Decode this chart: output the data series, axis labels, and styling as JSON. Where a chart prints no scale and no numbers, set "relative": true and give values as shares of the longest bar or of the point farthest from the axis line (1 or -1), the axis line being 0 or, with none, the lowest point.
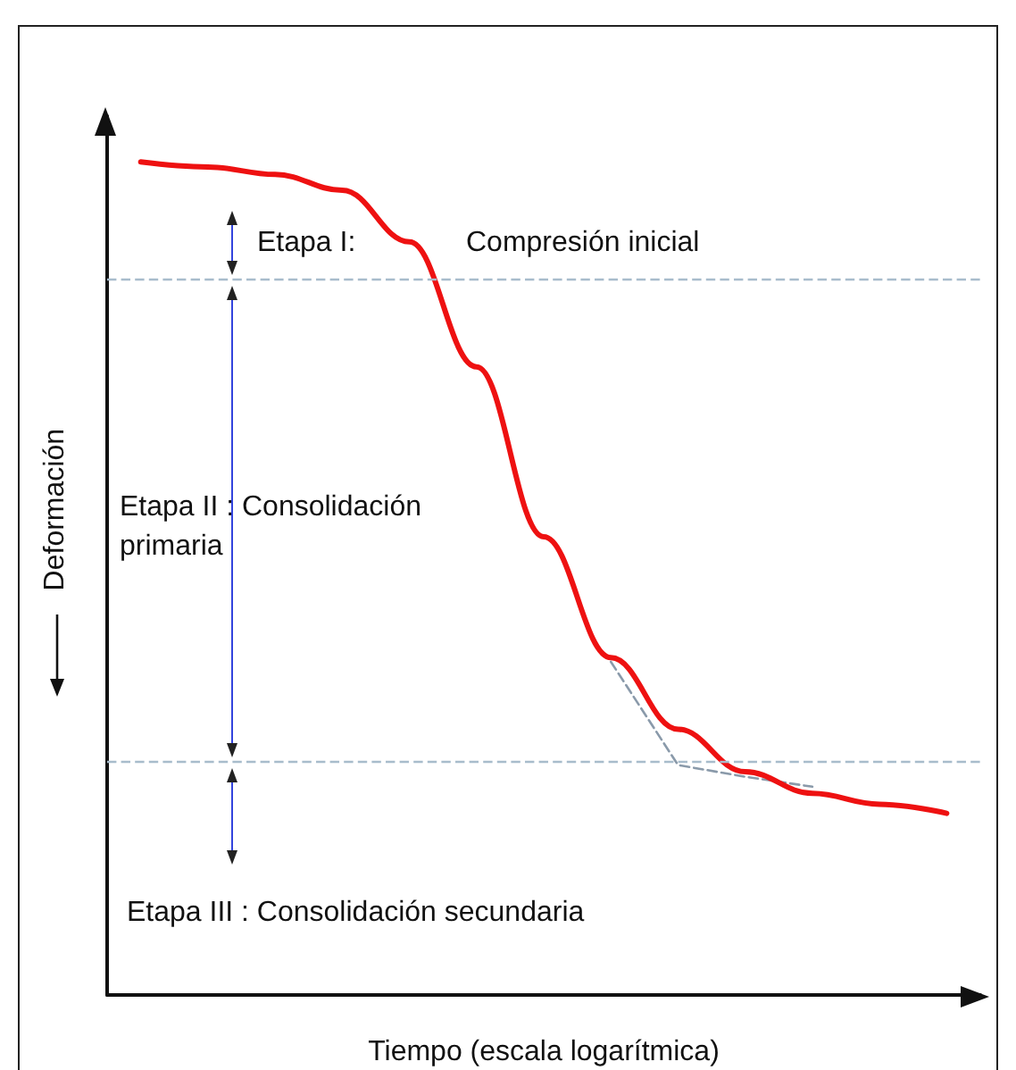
{
  "chart_data": {
    "type": "line",
    "relative": true,
    "xlabel": "Tiempo (escala logarítmica)",
    "ylabel": "Deformación",
    "categories": [
      null,
      null,
      null,
      null,
      null,
      null,
      null,
      null,
      null,
      null,
      null,
      null,
      null
    ],
    "series": [
      {
        "color": "#ee1111",
        "line_style": "solid",
        "values": [
          1,
          0.994,
          0.985,
          0.966,
          0.904,
          0.754,
          0.55,
          0.405,
          0.319,
          0.268,
          0.242,
          0.229,
          0.218
        ]
      },
      {
        "color": "#8a9aaa",
        "line_style": "dashed",
        "values": [
          null,
          null,
          null,
          null,
          null,
          null,
          null,
          0.4,
          0.276,
          0.262,
          0.25,
          null,
          null
        ]
      }
    ],
    "ref_lines": [
      {
        "axis": "y",
        "value": 0.861,
        "color": "#a8bccc",
        "line_style": "dashed"
      },
      {
        "axis": "y",
        "value": 0.276,
        "color": "#a8bccc",
        "line_style": "dashed"
      }
    ],
    "annotations": [
      "Etapa I:",
      "Compresión inicial",
      "Etapa II : Consolidación primaria",
      "Etapa III : Consolidación secundaria"
    ],
    "grid": false,
    "marker": "none"
  }
}
